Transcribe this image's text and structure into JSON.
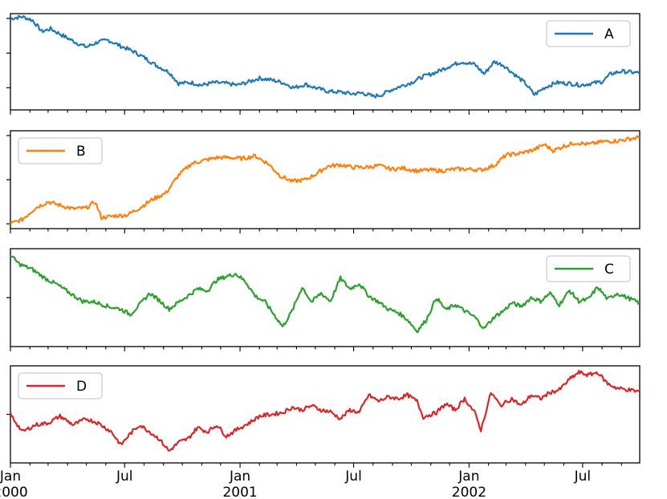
{
  "chart_data": {
    "type": "line",
    "layout": "four stacked subplots sharing one date x-axis",
    "x_start": "2000-01-01",
    "x_end": "2002-09-30",
    "x_ticks": [
      {
        "date": "2000-01-01",
        "label": "Jan",
        "sublabel": "2000"
      },
      {
        "date": "2000-07-01",
        "label": "Jul",
        "sublabel": ""
      },
      {
        "date": "2001-01-01",
        "label": "Jan",
        "sublabel": "2001"
      },
      {
        "date": "2001-07-01",
        "label": "Jul",
        "sublabel": ""
      },
      {
        "date": "2002-01-01",
        "label": "Jan",
        "sublabel": "2002"
      },
      {
        "date": "2002-07-01",
        "label": "Jul",
        "sublabel": ""
      }
    ],
    "ytick_labels_visible": false,
    "grid": false,
    "series": [
      {
        "name": "A",
        "color": "#1f77b4",
        "legend_loc": "top-right",
        "ylim": [
          0,
          1
        ],
        "yticks": [
          0.2,
          0.6,
          1.0
        ],
        "points": [
          [
            "2000-01-01",
            1.0
          ],
          [
            "2000-01-20",
            1.02
          ],
          [
            "2000-02-05",
            0.98
          ],
          [
            "2000-02-20",
            0.85
          ],
          [
            "2000-03-05",
            0.88
          ],
          [
            "2000-03-25",
            0.8
          ],
          [
            "2000-04-15",
            0.72
          ],
          [
            "2000-05-01",
            0.67
          ],
          [
            "2000-05-20",
            0.73
          ],
          [
            "2000-06-05",
            0.75
          ],
          [
            "2000-06-25",
            0.68
          ],
          [
            "2000-07-15",
            0.62
          ],
          [
            "2000-08-01",
            0.55
          ],
          [
            "2000-08-20",
            0.46
          ],
          [
            "2000-09-10",
            0.38
          ],
          [
            "2000-09-25",
            0.25
          ],
          [
            "2000-10-15",
            0.26
          ],
          [
            "2000-11-01",
            0.23
          ],
          [
            "2000-11-20",
            0.26
          ],
          [
            "2000-12-10",
            0.25
          ],
          [
            "2000-12-28",
            0.23
          ],
          [
            "2001-01-15",
            0.27
          ],
          [
            "2001-02-01",
            0.31
          ],
          [
            "2001-02-20",
            0.29
          ],
          [
            "2001-03-10",
            0.26
          ],
          [
            "2001-03-28",
            0.2
          ],
          [
            "2001-04-15",
            0.24
          ],
          [
            "2001-05-01",
            0.2
          ],
          [
            "2001-05-20",
            0.16
          ],
          [
            "2001-06-10",
            0.15
          ],
          [
            "2001-06-28",
            0.13
          ],
          [
            "2001-07-15",
            0.14
          ],
          [
            "2001-08-01",
            0.1
          ],
          [
            "2001-08-15",
            0.12
          ],
          [
            "2001-08-28",
            0.17
          ],
          [
            "2001-09-15",
            0.22
          ],
          [
            "2001-10-01",
            0.26
          ],
          [
            "2001-10-20",
            0.33
          ],
          [
            "2001-11-10",
            0.38
          ],
          [
            "2001-12-01",
            0.45
          ],
          [
            "2001-12-20",
            0.5
          ],
          [
            "2002-01-10",
            0.47
          ],
          [
            "2002-01-25",
            0.36
          ],
          [
            "2002-02-10",
            0.5
          ],
          [
            "2002-02-25",
            0.46
          ],
          [
            "2002-03-15",
            0.35
          ],
          [
            "2002-04-01",
            0.25
          ],
          [
            "2002-04-15",
            0.12
          ],
          [
            "2002-05-01",
            0.2
          ],
          [
            "2002-05-20",
            0.26
          ],
          [
            "2002-06-10",
            0.25
          ],
          [
            "2002-06-28",
            0.23
          ],
          [
            "2002-07-15",
            0.25
          ],
          [
            "2002-08-01",
            0.27
          ],
          [
            "2002-08-15",
            0.36
          ],
          [
            "2002-09-01",
            0.39
          ],
          [
            "2002-09-30",
            0.37
          ]
        ]
      },
      {
        "name": "B",
        "color": "#ff7f0e",
        "legend_loc": "top-left",
        "ylim": [
          0,
          1
        ],
        "yticks": [
          0.0,
          0.5,
          1.0
        ],
        "points": [
          [
            "2000-01-01",
            0.0
          ],
          [
            "2000-01-20",
            0.05
          ],
          [
            "2000-02-10",
            0.18
          ],
          [
            "2000-03-01",
            0.25
          ],
          [
            "2000-03-20",
            0.21
          ],
          [
            "2000-04-10",
            0.17
          ],
          [
            "2000-05-01",
            0.18
          ],
          [
            "2000-05-15",
            0.25
          ],
          [
            "2000-05-25",
            0.07
          ],
          [
            "2000-06-15",
            0.09
          ],
          [
            "2000-07-05",
            0.1
          ],
          [
            "2000-07-25",
            0.18
          ],
          [
            "2000-08-15",
            0.28
          ],
          [
            "2000-09-05",
            0.35
          ],
          [
            "2000-09-25",
            0.55
          ],
          [
            "2000-10-15",
            0.68
          ],
          [
            "2000-11-05",
            0.72
          ],
          [
            "2000-11-25",
            0.75
          ],
          [
            "2000-12-15",
            0.75
          ],
          [
            "2001-01-05",
            0.74
          ],
          [
            "2001-01-25",
            0.77
          ],
          [
            "2001-02-15",
            0.68
          ],
          [
            "2001-03-05",
            0.55
          ],
          [
            "2001-03-25",
            0.48
          ],
          [
            "2001-04-15",
            0.5
          ],
          [
            "2001-05-01",
            0.56
          ],
          [
            "2001-05-20",
            0.65
          ],
          [
            "2001-06-10",
            0.67
          ],
          [
            "2001-06-30",
            0.64
          ],
          [
            "2001-07-20",
            0.64
          ],
          [
            "2001-08-10",
            0.66
          ],
          [
            "2001-08-30",
            0.62
          ],
          [
            "2001-09-20",
            0.63
          ],
          [
            "2001-10-10",
            0.6
          ],
          [
            "2001-10-30",
            0.61
          ],
          [
            "2001-11-20",
            0.6
          ],
          [
            "2001-12-10",
            0.62
          ],
          [
            "2002-01-01",
            0.62
          ],
          [
            "2002-01-20",
            0.61
          ],
          [
            "2002-02-10",
            0.66
          ],
          [
            "2002-03-01",
            0.78
          ],
          [
            "2002-03-25",
            0.8
          ],
          [
            "2002-04-15",
            0.84
          ],
          [
            "2002-05-01",
            0.9
          ],
          [
            "2002-05-15",
            0.83
          ],
          [
            "2002-06-01",
            0.88
          ],
          [
            "2002-06-20",
            0.92
          ],
          [
            "2002-07-10",
            0.9
          ],
          [
            "2002-08-01",
            0.93
          ],
          [
            "2002-08-25",
            0.94
          ],
          [
            "2002-09-30",
            0.98
          ]
        ]
      },
      {
        "name": "C",
        "color": "#2ca02c",
        "legend_loc": "top-right",
        "ylim": [
          0,
          1
        ],
        "yticks": [
          0.5
        ],
        "points": [
          [
            "2000-01-01",
            0.98
          ],
          [
            "2000-01-15",
            0.88
          ],
          [
            "2000-02-05",
            0.82
          ],
          [
            "2000-02-25",
            0.72
          ],
          [
            "2000-03-15",
            0.65
          ],
          [
            "2000-04-05",
            0.55
          ],
          [
            "2000-04-25",
            0.46
          ],
          [
            "2000-05-15",
            0.45
          ],
          [
            "2000-06-05",
            0.4
          ],
          [
            "2000-06-25",
            0.37
          ],
          [
            "2000-07-10",
            0.31
          ],
          [
            "2000-07-25",
            0.42
          ],
          [
            "2000-08-10",
            0.55
          ],
          [
            "2000-08-25",
            0.47
          ],
          [
            "2000-09-10",
            0.37
          ],
          [
            "2000-09-25",
            0.45
          ],
          [
            "2000-10-10",
            0.52
          ],
          [
            "2000-10-25",
            0.6
          ],
          [
            "2000-11-10",
            0.58
          ],
          [
            "2000-11-25",
            0.7
          ],
          [
            "2000-12-10",
            0.74
          ],
          [
            "2000-12-25",
            0.77
          ],
          [
            "2001-01-10",
            0.68
          ],
          [
            "2001-01-25",
            0.52
          ],
          [
            "2001-02-10",
            0.45
          ],
          [
            "2001-02-25",
            0.3
          ],
          [
            "2001-03-10",
            0.17
          ],
          [
            "2001-03-25",
            0.35
          ],
          [
            "2001-04-10",
            0.62
          ],
          [
            "2001-04-25",
            0.45
          ],
          [
            "2001-05-10",
            0.55
          ],
          [
            "2001-05-25",
            0.46
          ],
          [
            "2001-06-10",
            0.72
          ],
          [
            "2001-06-25",
            0.6
          ],
          [
            "2001-07-10",
            0.66
          ],
          [
            "2001-07-25",
            0.52
          ],
          [
            "2001-08-10",
            0.45
          ],
          [
            "2001-08-25",
            0.37
          ],
          [
            "2001-09-10",
            0.33
          ],
          [
            "2001-09-25",
            0.25
          ],
          [
            "2001-10-10",
            0.12
          ],
          [
            "2001-10-25",
            0.25
          ],
          [
            "2001-11-10",
            0.5
          ],
          [
            "2001-11-25",
            0.36
          ],
          [
            "2001-12-10",
            0.42
          ],
          [
            "2001-12-25",
            0.35
          ],
          [
            "2002-01-10",
            0.28
          ],
          [
            "2002-01-25",
            0.15
          ],
          [
            "2002-02-10",
            0.28
          ],
          [
            "2002-02-25",
            0.35
          ],
          [
            "2002-03-10",
            0.44
          ],
          [
            "2002-03-25",
            0.4
          ],
          [
            "2002-04-10",
            0.5
          ],
          [
            "2002-04-25",
            0.46
          ],
          [
            "2002-05-10",
            0.55
          ],
          [
            "2002-05-25",
            0.42
          ],
          [
            "2002-06-10",
            0.58
          ],
          [
            "2002-06-25",
            0.46
          ],
          [
            "2002-07-10",
            0.48
          ],
          [
            "2002-07-25",
            0.62
          ],
          [
            "2002-08-10",
            0.48
          ],
          [
            "2002-08-25",
            0.55
          ],
          [
            "2002-09-10",
            0.5
          ],
          [
            "2002-09-30",
            0.44
          ]
        ]
      },
      {
        "name": "D",
        "color": "#d62728",
        "legend_loc": "top-left",
        "ylim": [
          0,
          1
        ],
        "yticks": [
          0.5
        ],
        "points": [
          [
            "2000-01-01",
            0.5
          ],
          [
            "2000-01-20",
            0.3
          ],
          [
            "2000-02-10",
            0.38
          ],
          [
            "2000-03-01",
            0.4
          ],
          [
            "2000-03-20",
            0.48
          ],
          [
            "2000-04-10",
            0.38
          ],
          [
            "2000-05-01",
            0.45
          ],
          [
            "2000-05-20",
            0.4
          ],
          [
            "2000-06-10",
            0.3
          ],
          [
            "2000-06-25",
            0.15
          ],
          [
            "2000-07-10",
            0.28
          ],
          [
            "2000-07-25",
            0.38
          ],
          [
            "2000-08-10",
            0.3
          ],
          [
            "2000-08-25",
            0.22
          ],
          [
            "2000-09-10",
            0.08
          ],
          [
            "2000-09-25",
            0.18
          ],
          [
            "2000-10-10",
            0.22
          ],
          [
            "2000-10-25",
            0.35
          ],
          [
            "2000-11-10",
            0.3
          ],
          [
            "2000-11-25",
            0.38
          ],
          [
            "2000-12-10",
            0.25
          ],
          [
            "2000-12-28",
            0.33
          ],
          [
            "2001-01-15",
            0.4
          ],
          [
            "2001-02-01",
            0.48
          ],
          [
            "2001-02-20",
            0.5
          ],
          [
            "2001-03-10",
            0.52
          ],
          [
            "2001-03-25",
            0.58
          ],
          [
            "2001-04-10",
            0.55
          ],
          [
            "2001-04-25",
            0.6
          ],
          [
            "2001-05-10",
            0.55
          ],
          [
            "2001-05-25",
            0.53
          ],
          [
            "2001-06-10",
            0.45
          ],
          [
            "2001-06-25",
            0.55
          ],
          [
            "2001-07-10",
            0.52
          ],
          [
            "2001-07-25",
            0.72
          ],
          [
            "2001-08-10",
            0.65
          ],
          [
            "2001-08-25",
            0.7
          ],
          [
            "2001-09-10",
            0.68
          ],
          [
            "2001-09-25",
            0.72
          ],
          [
            "2001-10-10",
            0.65
          ],
          [
            "2001-10-20",
            0.47
          ],
          [
            "2001-11-10",
            0.52
          ],
          [
            "2001-11-25",
            0.62
          ],
          [
            "2001-12-10",
            0.55
          ],
          [
            "2001-12-25",
            0.68
          ],
          [
            "2002-01-10",
            0.52
          ],
          [
            "2002-01-20",
            0.32
          ],
          [
            "2002-02-05",
            0.75
          ],
          [
            "2002-02-20",
            0.6
          ],
          [
            "2002-03-10",
            0.68
          ],
          [
            "2002-03-25",
            0.6
          ],
          [
            "2002-04-10",
            0.72
          ],
          [
            "2002-04-25",
            0.68
          ],
          [
            "2002-05-10",
            0.75
          ],
          [
            "2002-05-25",
            0.78
          ],
          [
            "2002-06-10",
            0.9
          ],
          [
            "2002-06-25",
            0.98
          ],
          [
            "2002-07-10",
            0.95
          ],
          [
            "2002-07-25",
            0.98
          ],
          [
            "2002-08-10",
            0.85
          ],
          [
            "2002-08-25",
            0.8
          ],
          [
            "2002-09-30",
            0.76
          ]
        ]
      }
    ]
  }
}
